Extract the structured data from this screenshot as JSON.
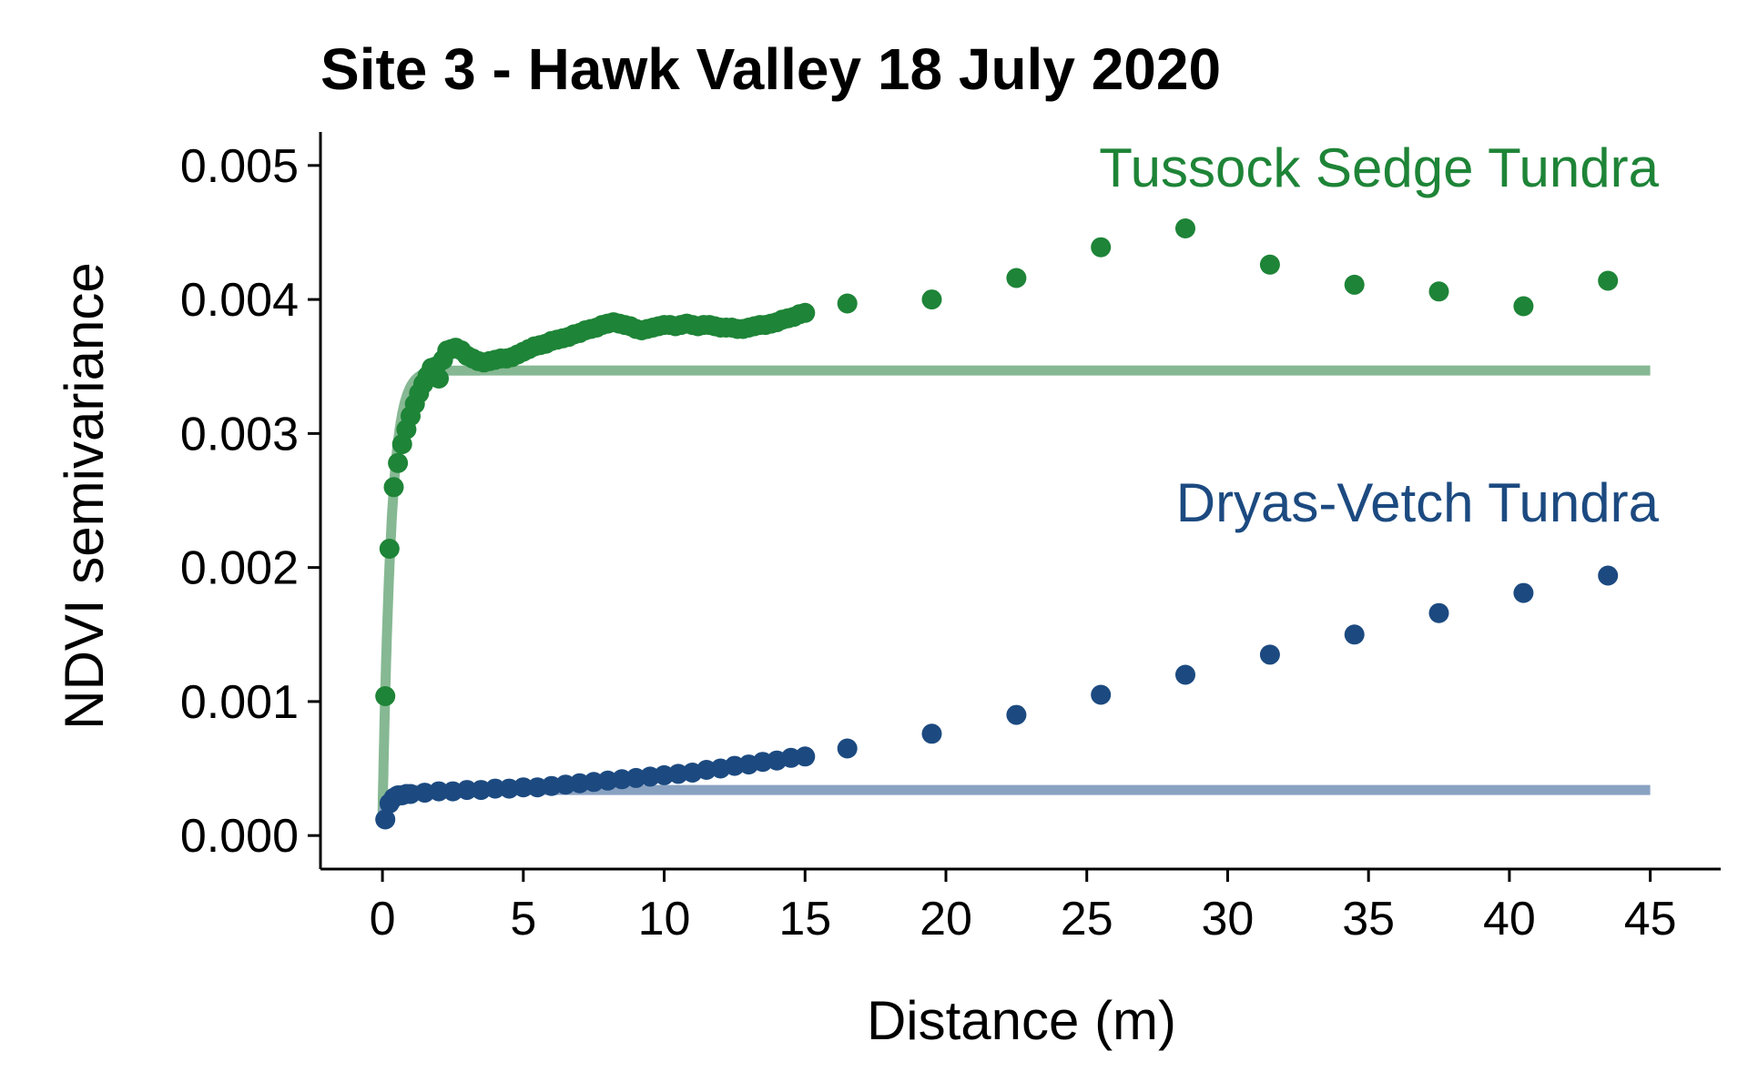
{
  "chart_data": {
    "type": "scatter",
    "title": "Site 3 - Hawk Valley 18 July 2020",
    "xlabel": "Distance (m)",
    "ylabel": "NDVI semivariance",
    "xlim": [
      -2.2,
      47.5
    ],
    "ylim": [
      -0.00025,
      0.00525
    ],
    "xticks": [
      0,
      5,
      10,
      15,
      20,
      25,
      30,
      35,
      40,
      45
    ],
    "yticks": [
      0.0,
      0.001,
      0.002,
      0.003,
      0.004,
      0.005
    ],
    "ytick_labels": [
      "0.000",
      "0.001",
      "0.002",
      "0.003",
      "0.004",
      "0.005"
    ],
    "grid": false,
    "legend": "none",
    "series": [
      {
        "name": "Tussock Sedge Tundra",
        "color": "#1e8437",
        "fit_color": "#86b893",
        "fit": {
          "model": "exponential",
          "nugget": 0.00012,
          "sill": 0.00347,
          "range_param": 0.3,
          "x_end": 45
        },
        "points": [
          [
            0.1,
            0.00104
          ],
          [
            0.25,
            0.00214
          ],
          [
            0.4,
            0.0026
          ],
          [
            0.55,
            0.00278
          ],
          [
            0.7,
            0.00292
          ],
          [
            0.85,
            0.00303
          ],
          [
            1.0,
            0.00313
          ],
          [
            1.15,
            0.00322
          ],
          [
            1.3,
            0.0033
          ],
          [
            1.45,
            0.00337
          ],
          [
            1.6,
            0.00343
          ],
          [
            1.75,
            0.00349
          ],
          [
            1.9,
            0.0035
          ],
          [
            2.0,
            0.00341
          ],
          [
            2.15,
            0.00355
          ],
          [
            2.3,
            0.00362
          ],
          [
            2.45,
            0.00363
          ],
          [
            2.6,
            0.00364
          ],
          [
            2.8,
            0.00362
          ],
          [
            3.0,
            0.00358
          ],
          [
            3.2,
            0.00356
          ],
          [
            3.4,
            0.00354
          ],
          [
            3.6,
            0.00353
          ],
          [
            3.8,
            0.00354
          ],
          [
            4.0,
            0.00355
          ],
          [
            4.2,
            0.00356
          ],
          [
            4.4,
            0.00356
          ],
          [
            4.6,
            0.00357
          ],
          [
            4.8,
            0.00359
          ],
          [
            5.0,
            0.00361
          ],
          [
            5.2,
            0.00363
          ],
          [
            5.4,
            0.00365
          ],
          [
            5.6,
            0.00366
          ],
          [
            5.8,
            0.00367
          ],
          [
            6.0,
            0.00369
          ],
          [
            6.2,
            0.0037
          ],
          [
            6.4,
            0.00371
          ],
          [
            6.6,
            0.00372
          ],
          [
            6.8,
            0.00374
          ],
          [
            7.0,
            0.00375
          ],
          [
            7.2,
            0.00377
          ],
          [
            7.4,
            0.00378
          ],
          [
            7.6,
            0.00379
          ],
          [
            7.8,
            0.00381
          ],
          [
            8.0,
            0.00382
          ],
          [
            8.2,
            0.00383
          ],
          [
            8.4,
            0.00382
          ],
          [
            8.6,
            0.00381
          ],
          [
            8.8,
            0.0038
          ],
          [
            9.0,
            0.00378
          ],
          [
            9.2,
            0.00377
          ],
          [
            9.4,
            0.00378
          ],
          [
            9.6,
            0.00379
          ],
          [
            9.8,
            0.0038
          ],
          [
            10.0,
            0.00381
          ],
          [
            10.2,
            0.00381
          ],
          [
            10.4,
            0.0038
          ],
          [
            10.6,
            0.00381
          ],
          [
            10.8,
            0.00382
          ],
          [
            11.0,
            0.00381
          ],
          [
            11.2,
            0.0038
          ],
          [
            11.4,
            0.00381
          ],
          [
            11.6,
            0.00381
          ],
          [
            11.8,
            0.0038
          ],
          [
            12.0,
            0.00379
          ],
          [
            12.2,
            0.00379
          ],
          [
            12.4,
            0.00379
          ],
          [
            12.6,
            0.00378
          ],
          [
            12.8,
            0.00378
          ],
          [
            13.0,
            0.00379
          ],
          [
            13.2,
            0.0038
          ],
          [
            13.4,
            0.00381
          ],
          [
            13.6,
            0.00381
          ],
          [
            13.8,
            0.00382
          ],
          [
            14.0,
            0.00383
          ],
          [
            14.2,
            0.00385
          ],
          [
            14.4,
            0.00386
          ],
          [
            14.6,
            0.00387
          ],
          [
            14.8,
            0.00389
          ],
          [
            15.0,
            0.0039
          ],
          [
            16.5,
            0.00397
          ],
          [
            19.5,
            0.004
          ],
          [
            22.5,
            0.00416
          ],
          [
            25.5,
            0.00439
          ],
          [
            28.5,
            0.00453
          ],
          [
            31.5,
            0.00426
          ],
          [
            34.5,
            0.00411
          ],
          [
            37.5,
            0.00406
          ],
          [
            40.5,
            0.00395
          ],
          [
            43.5,
            0.00414
          ]
        ]
      },
      {
        "name": "Dryas-Vetch Tundra",
        "color": "#1c4a80",
        "fit_color": "#8aa2c2",
        "fit": {
          "model": "exponential",
          "nugget": 0.00012,
          "sill": 0.00034,
          "range_param": 0.15,
          "x_end": 45
        },
        "points": [
          [
            0.1,
            0.00012
          ],
          [
            0.25,
            0.00024
          ],
          [
            0.4,
            0.00028
          ],
          [
            0.55,
            0.0003
          ],
          [
            0.7,
            0.0003
          ],
          [
            0.85,
            0.00031
          ],
          [
            1.0,
            0.00031
          ],
          [
            1.5,
            0.00032
          ],
          [
            2.0,
            0.00033
          ],
          [
            2.5,
            0.00033
          ],
          [
            3.0,
            0.00034
          ],
          [
            3.5,
            0.00034
          ],
          [
            4.0,
            0.00035
          ],
          [
            4.5,
            0.00035
          ],
          [
            5.0,
            0.00036
          ],
          [
            5.5,
            0.00036
          ],
          [
            6.0,
            0.00037
          ],
          [
            6.5,
            0.00038
          ],
          [
            7.0,
            0.00039
          ],
          [
            7.5,
            0.0004
          ],
          [
            8.0,
            0.00041
          ],
          [
            8.5,
            0.00042
          ],
          [
            9.0,
            0.00043
          ],
          [
            9.5,
            0.00044
          ],
          [
            10.0,
            0.00045
          ],
          [
            10.5,
            0.00046
          ],
          [
            11.0,
            0.00047
          ],
          [
            11.5,
            0.00049
          ],
          [
            12.0,
            0.0005
          ],
          [
            12.5,
            0.00052
          ],
          [
            13.0,
            0.00053
          ],
          [
            13.5,
            0.00055
          ],
          [
            14.0,
            0.00056
          ],
          [
            14.5,
            0.00058
          ],
          [
            15.0,
            0.00059
          ],
          [
            16.5,
            0.00065
          ],
          [
            19.5,
            0.00076
          ],
          [
            22.5,
            0.0009
          ],
          [
            25.5,
            0.00105
          ],
          [
            28.5,
            0.0012
          ],
          [
            31.5,
            0.00135
          ],
          [
            34.5,
            0.0015
          ],
          [
            37.5,
            0.00166
          ],
          [
            40.5,
            0.00181
          ],
          [
            43.5,
            0.00194
          ]
        ]
      }
    ],
    "annotations": [
      {
        "text": "Tussock Sedge Tundra",
        "color": "#1e8437"
      },
      {
        "text": "Dryas-Vetch Tundra",
        "color": "#1c4a80"
      }
    ]
  }
}
